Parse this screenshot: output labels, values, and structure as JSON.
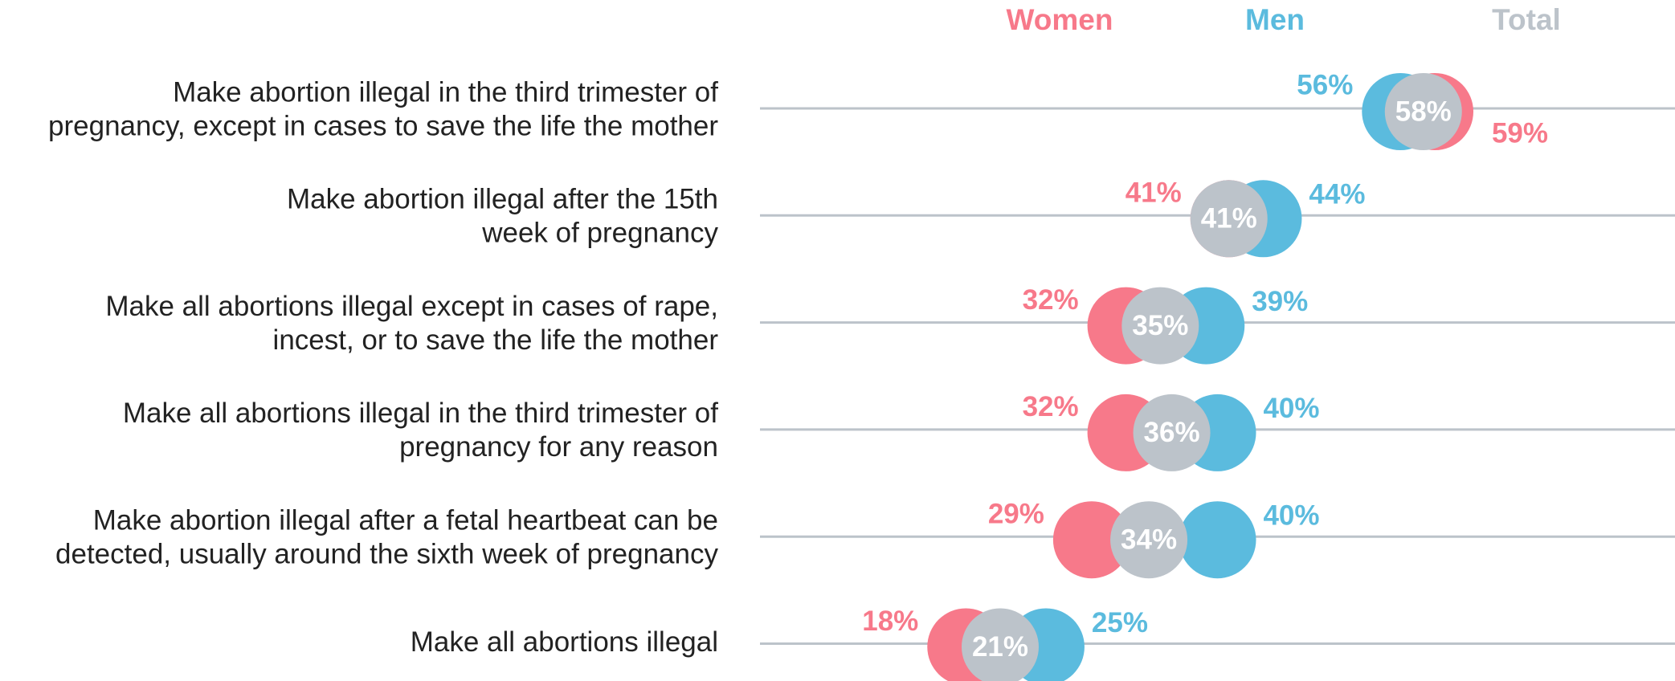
{
  "chart_data": {
    "type": "dot",
    "categories": [
      [
        "Make abortion illegal in the third trimester of",
        "pregnancy, except in cases to save the life the mother"
      ],
      [
        "Make abortion illegal after the 15th",
        "week of pregnancy"
      ],
      [
        "Make all abortions illegal except in cases of rape,",
        "incest, or to save the life the mother"
      ],
      [
        "Make all abortions illegal in the third trimester of",
        "pregnancy for any reason"
      ],
      [
        "Make abortion illegal after a fetal heartbeat can be",
        "detected, usually around the sixth week of pregnancy"
      ],
      [
        "Make all abortions illegal"
      ]
    ],
    "series": [
      {
        "name": "Women",
        "color": "#f7798a",
        "values": [
          59,
          41,
          32,
          32,
          29,
          18
        ],
        "value_labels": [
          "59%",
          "41%",
          "32%",
          "32%",
          "29%",
          "18%"
        ]
      },
      {
        "name": "Men",
        "color": "#5bbbde",
        "values": [
          56,
          44,
          39,
          40,
          40,
          25
        ],
        "value_labels": [
          "56%",
          "44%",
          "39%",
          "40%",
          "40%",
          "25%"
        ]
      },
      {
        "name": "Total",
        "color": "#bcc3ca",
        "values": [
          58,
          41,
          35,
          36,
          34,
          21
        ],
        "value_labels": [
          "58%",
          "41%",
          "35%",
          "36%",
          "34%",
          "21%"
        ]
      }
    ],
    "xlim": [
      0,
      80
    ]
  }
}
